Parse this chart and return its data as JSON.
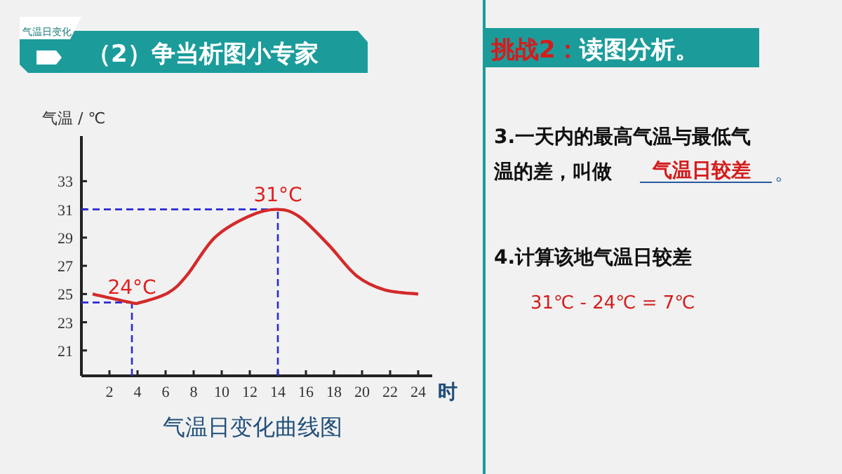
{
  "chart_data": {
    "type": "line",
    "title": "气温日变化曲线图",
    "ylabel": "气温 / ℃",
    "xlabel": "时",
    "x": [
      0.8,
      3.5,
      4.2,
      6.2,
      7.5,
      9.5,
      11.9,
      13.9,
      15.5,
      17.6,
      19.6,
      21.6,
      24
    ],
    "values": [
      25.0,
      24.4,
      24.4,
      25.1,
      26.3,
      29.0,
      30.5,
      31.0,
      30.5,
      28.5,
      26.3,
      25.3,
      25.0
    ],
    "ref_lines": [
      {
        "axis": "y",
        "value": 31,
        "color": "#2a2ad4",
        "line_style": "dashed"
      },
      {
        "axis": "x",
        "value": 14,
        "color": "#2a2ad4",
        "line_style": "dashed"
      },
      {
        "axis": "y",
        "value": 24.4,
        "color": "#2a2ad4",
        "line_style": "dashed"
      },
      {
        "axis": "x",
        "value": 3.6,
        "color": "#2a2ad4",
        "line_style": "dashed"
      }
    ],
    "color": "#d42a2a",
    "xlim": [
      0,
      25
    ],
    "ylim": [
      19.2,
      36.2
    ],
    "xticks": [
      2,
      4,
      6,
      8,
      10,
      12,
      14,
      16,
      18,
      20,
      22,
      24
    ],
    "yticks": [
      21,
      23,
      25,
      27,
      29,
      31,
      33
    ],
    "grid": false,
    "marker": "none",
    "line_style": "solid",
    "annotations": [
      {
        "text": "31°C",
        "x": 14,
        "y": 31
      },
      {
        "text": "24°C",
        "x": 3.6,
        "y": 24.4
      },
      "气温日变化",
      "（2）争当析图小专家",
      "挑战2：读图分析。",
      "3.一天内的最高气温与最低气",
      "温的差，叫做",
      "气温日较差",
      "。",
      "4.计算该地气温日较差",
      "31℃ - 24℃ = 7℃"
    ]
  }
}
